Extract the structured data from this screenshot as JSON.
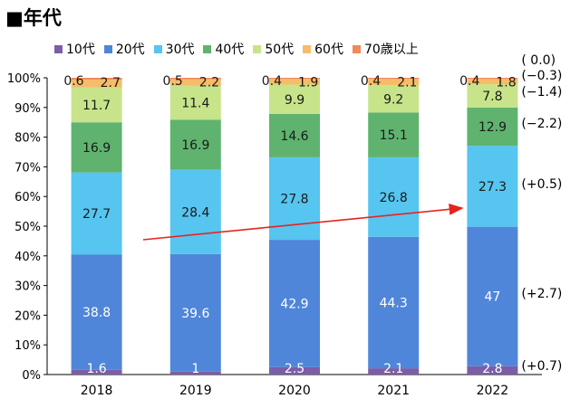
{
  "title": "■年代",
  "legend": [
    {
      "label": "10代",
      "color": "#7b5ea7"
    },
    {
      "label": "20代",
      "color": "#4f86d9"
    },
    {
      "label": "30代",
      "color": "#56c5f0"
    },
    {
      "label": "40代",
      "color": "#5fb36f"
    },
    {
      "label": "50代",
      "color": "#c7e48a"
    },
    {
      "label": "60代",
      "color": "#f6bc6a"
    },
    {
      "label": "70歳以上",
      "color": "#f08a58"
    }
  ],
  "chart_data": {
    "type": "bar",
    "stacked": true,
    "categories": [
      "2018",
      "2019",
      "2020",
      "2021",
      "2022"
    ],
    "series": [
      {
        "name": "10代",
        "values": [
          1.6,
          1.0,
          2.5,
          2.1,
          2.8
        ],
        "color": "#7b5ea7"
      },
      {
        "name": "20代",
        "values": [
          38.8,
          39.6,
          42.9,
          44.3,
          47.0
        ],
        "color": "#4f86d9"
      },
      {
        "name": "30代",
        "values": [
          27.7,
          28.4,
          27.8,
          26.8,
          27.3
        ],
        "color": "#56c5f0"
      },
      {
        "name": "40代",
        "values": [
          16.9,
          16.9,
          14.6,
          15.1,
          12.9
        ],
        "color": "#5fb36f"
      },
      {
        "name": "50代",
        "values": [
          11.7,
          11.4,
          9.9,
          9.2,
          7.8
        ],
        "color": "#c7e48a"
      },
      {
        "name": "60代",
        "values": [
          2.7,
          2.2,
          1.9,
          2.1,
          1.8
        ],
        "color": "#f6bc6a"
      },
      {
        "name": "70歳以上",
        "values": [
          0.6,
          0.5,
          0.4,
          0.4,
          0.4
        ],
        "color": "#f08a58"
      }
    ],
    "yticks": [
      "0%",
      "10%",
      "20%",
      "30%",
      "40%",
      "50%",
      "60%",
      "70%",
      "80%",
      "90%",
      "100%"
    ],
    "ylim": [
      0,
      100
    ],
    "change_labels": [
      "(+0.7)",
      "(+2.7)",
      "(+0.5)",
      "(−2.2)",
      "(−1.4)",
      "(−0.3)",
      "( 0.0)"
    ],
    "annotations": [
      "red trend arrow across 20代 segments from 2018 to 2022"
    ],
    "accent": "#e8231e"
  }
}
